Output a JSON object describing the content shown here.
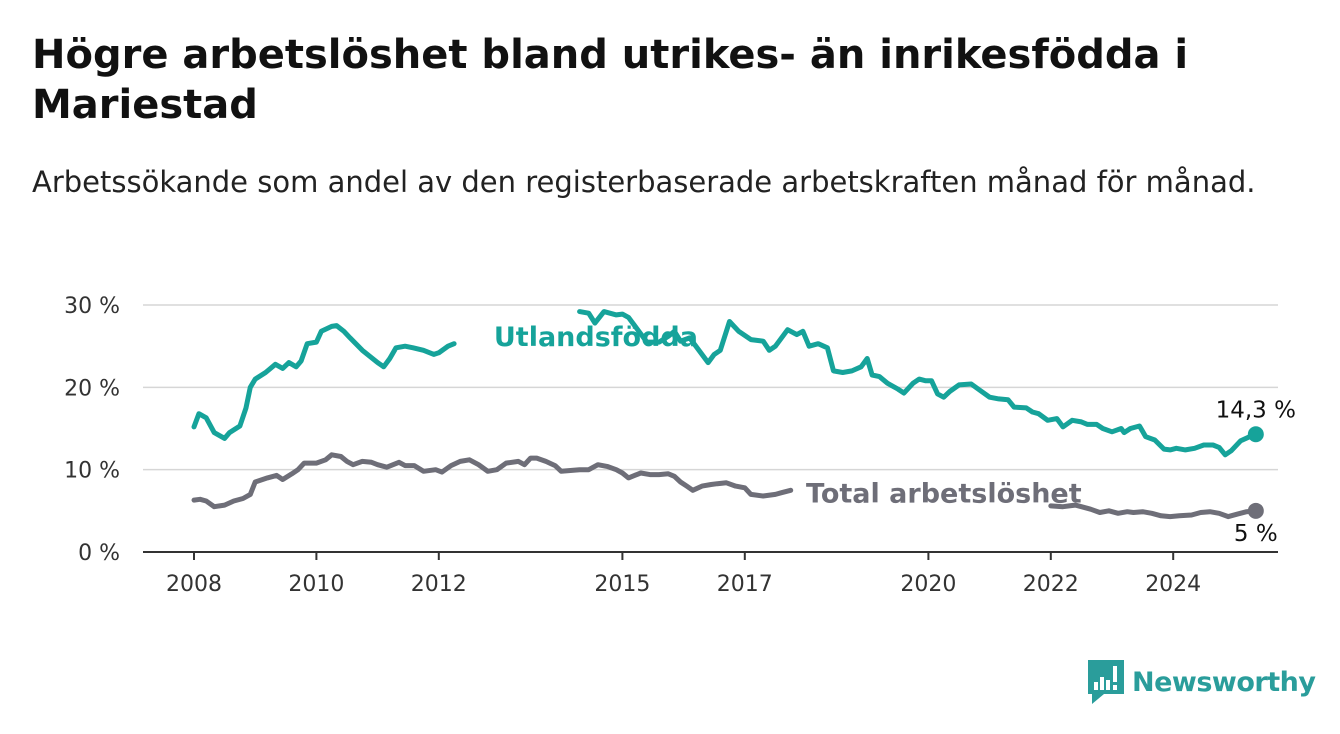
{
  "title": "Högre arbetslöshet bland utrikes- än inrikesfödda i Mariestad",
  "subtitle": "Arbetssökande som andel av den registerbaserade arbetskraften månad för månad.",
  "brand": {
    "name": "Newsworthy",
    "icon": "newsworthy-logo-icon",
    "color": "#2a9d9b"
  },
  "chart_data": {
    "type": "line",
    "x_unit": "year",
    "xlim": [
      2008,
      2025.3
    ],
    "ylim": [
      0,
      30
    ],
    "yticks": [
      0,
      10,
      20,
      30
    ],
    "ytick_labels": [
      "0 %",
      "10 %",
      "20 %",
      "30 %"
    ],
    "xticks": [
      2008,
      2010,
      2012,
      2015,
      2017,
      2020,
      2022,
      2024
    ],
    "xtick_labels": [
      "2008",
      "2010",
      "2012",
      "2015",
      "2017",
      "2020",
      "2022",
      "2024"
    ],
    "grid": true,
    "series": [
      {
        "name": "Utlandsfödda",
        "color": "#16a39a",
        "end_label": "14,3 %",
        "points": [
          [
            2008.0,
            15.2
          ],
          [
            2008.08,
            16.8
          ],
          [
            2008.2,
            16.3
          ],
          [
            2008.33,
            14.5
          ],
          [
            2008.5,
            13.8
          ],
          [
            2008.58,
            14.5
          ],
          [
            2008.75,
            15.3
          ],
          [
            2008.85,
            17.5
          ],
          [
            2008.92,
            20.0
          ],
          [
            2009.0,
            21.0
          ],
          [
            2009.17,
            21.8
          ],
          [
            2009.33,
            22.8
          ],
          [
            2009.45,
            22.3
          ],
          [
            2009.55,
            23.0
          ],
          [
            2009.67,
            22.5
          ],
          [
            2009.75,
            23.2
          ],
          [
            2009.85,
            25.3
          ],
          [
            2010.0,
            25.5
          ],
          [
            2010.08,
            26.8
          ],
          [
            2010.25,
            27.4
          ],
          [
            2010.33,
            27.5
          ],
          [
            2010.45,
            26.8
          ],
          [
            2010.55,
            26.0
          ],
          [
            2010.75,
            24.5
          ],
          [
            2011.0,
            23.0
          ],
          [
            2011.1,
            22.5
          ],
          [
            2011.2,
            23.5
          ],
          [
            2011.3,
            24.8
          ],
          [
            2011.45,
            25.0
          ],
          [
            2011.58,
            24.8
          ],
          [
            2011.75,
            24.5
          ],
          [
            2011.92,
            24.0
          ],
          [
            2012.0,
            24.2
          ],
          [
            2012.15,
            25.0
          ],
          [
            2012.25,
            25.3
          ],
          [
            2014.3,
            29.2
          ],
          [
            2014.45,
            29.0
          ],
          [
            2014.55,
            27.8
          ],
          [
            2014.7,
            29.2
          ],
          [
            2014.9,
            28.8
          ],
          [
            2015.0,
            28.9
          ],
          [
            2015.1,
            28.5
          ],
          [
            2015.25,
            27.0
          ],
          [
            2015.4,
            25.5
          ],
          [
            2015.6,
            25.5
          ],
          [
            2015.75,
            26.2
          ],
          [
            2015.85,
            26.8
          ],
          [
            2015.95,
            25.6
          ],
          [
            2016.1,
            26.0
          ],
          [
            2016.25,
            24.5
          ],
          [
            2016.4,
            23.0
          ],
          [
            2016.5,
            24.0
          ],
          [
            2016.6,
            24.5
          ],
          [
            2016.75,
            28.0
          ],
          [
            2016.9,
            26.8
          ],
          [
            2017.1,
            25.8
          ],
          [
            2017.3,
            25.6
          ],
          [
            2017.4,
            24.5
          ],
          [
            2017.5,
            25.0
          ],
          [
            2017.7,
            27.0
          ],
          [
            2017.85,
            26.4
          ],
          [
            2017.95,
            26.8
          ],
          [
            2018.05,
            25.0
          ],
          [
            2018.2,
            25.3
          ],
          [
            2018.35,
            24.8
          ],
          [
            2018.45,
            22.0
          ],
          [
            2018.6,
            21.8
          ],
          [
            2018.75,
            22.0
          ],
          [
            2018.9,
            22.5
          ],
          [
            2019.0,
            23.5
          ],
          [
            2019.08,
            21.5
          ],
          [
            2019.2,
            21.3
          ],
          [
            2019.33,
            20.5
          ],
          [
            2019.5,
            19.8
          ],
          [
            2019.6,
            19.3
          ],
          [
            2019.75,
            20.5
          ],
          [
            2019.85,
            21.0
          ],
          [
            2019.95,
            20.8
          ],
          [
            2020.05,
            20.8
          ],
          [
            2020.15,
            19.2
          ],
          [
            2020.25,
            18.8
          ],
          [
            2020.35,
            19.5
          ],
          [
            2020.5,
            20.3
          ],
          [
            2020.7,
            20.4
          ],
          [
            2020.85,
            19.6
          ],
          [
            2021.0,
            18.8
          ],
          [
            2021.15,
            18.6
          ],
          [
            2021.3,
            18.5
          ],
          [
            2021.4,
            17.6
          ],
          [
            2021.6,
            17.5
          ],
          [
            2021.7,
            17.0
          ],
          [
            2021.8,
            16.8
          ],
          [
            2021.95,
            16.0
          ],
          [
            2022.1,
            16.2
          ],
          [
            2022.2,
            15.2
          ],
          [
            2022.35,
            16.0
          ],
          [
            2022.5,
            15.8
          ],
          [
            2022.6,
            15.5
          ],
          [
            2022.75,
            15.5
          ],
          [
            2022.85,
            15.0
          ],
          [
            2023.0,
            14.6
          ],
          [
            2023.15,
            15.0
          ],
          [
            2023.2,
            14.5
          ],
          [
            2023.3,
            15.0
          ],
          [
            2023.45,
            15.3
          ],
          [
            2023.55,
            14.0
          ],
          [
            2023.7,
            13.6
          ],
          [
            2023.85,
            12.5
          ],
          [
            2023.95,
            12.4
          ],
          [
            2024.05,
            12.6
          ],
          [
            2024.2,
            12.4
          ],
          [
            2024.35,
            12.6
          ],
          [
            2024.5,
            13.0
          ],
          [
            2024.65,
            13.0
          ],
          [
            2024.75,
            12.7
          ],
          [
            2024.85,
            11.8
          ],
          [
            2024.95,
            12.3
          ],
          [
            2025.1,
            13.5
          ],
          [
            2025.25,
            14.0
          ],
          [
            2025.35,
            14.3
          ]
        ]
      },
      {
        "name": "Total arbetslöshet",
        "color": "#6e6e78",
        "end_label": "5 %",
        "points": [
          [
            2008.0,
            6.3
          ],
          [
            2008.1,
            6.4
          ],
          [
            2008.2,
            6.2
          ],
          [
            2008.33,
            5.5
          ],
          [
            2008.5,
            5.7
          ],
          [
            2008.65,
            6.2
          ],
          [
            2008.8,
            6.5
          ],
          [
            2008.92,
            7.0
          ],
          [
            2009.0,
            8.5
          ],
          [
            2009.2,
            9.0
          ],
          [
            2009.35,
            9.3
          ],
          [
            2009.45,
            8.8
          ],
          [
            2009.6,
            9.5
          ],
          [
            2009.7,
            10.0
          ],
          [
            2009.8,
            10.8
          ],
          [
            2010.0,
            10.8
          ],
          [
            2010.15,
            11.2
          ],
          [
            2010.25,
            11.8
          ],
          [
            2010.4,
            11.6
          ],
          [
            2010.5,
            11.0
          ],
          [
            2010.6,
            10.6
          ],
          [
            2010.75,
            11.0
          ],
          [
            2010.9,
            10.9
          ],
          [
            2011.0,
            10.6
          ],
          [
            2011.15,
            10.3
          ],
          [
            2011.35,
            10.9
          ],
          [
            2011.45,
            10.5
          ],
          [
            2011.6,
            10.5
          ],
          [
            2011.75,
            9.8
          ],
          [
            2011.95,
            10.0
          ],
          [
            2012.05,
            9.7
          ],
          [
            2012.2,
            10.5
          ],
          [
            2012.35,
            11.0
          ],
          [
            2012.5,
            11.2
          ],
          [
            2012.65,
            10.6
          ],
          [
            2012.8,
            9.8
          ],
          [
            2012.95,
            10.0
          ],
          [
            2013.1,
            10.8
          ],
          [
            2013.3,
            11.0
          ],
          [
            2013.4,
            10.6
          ],
          [
            2013.5,
            11.4
          ],
          [
            2013.6,
            11.4
          ],
          [
            2013.75,
            11.0
          ],
          [
            2013.9,
            10.5
          ],
          [
            2014.0,
            9.8
          ],
          [
            2014.15,
            9.9
          ],
          [
            2014.3,
            10.0
          ],
          [
            2014.45,
            10.0
          ],
          [
            2014.6,
            10.6
          ],
          [
            2014.75,
            10.4
          ],
          [
            2014.9,
            10.0
          ],
          [
            2015.0,
            9.6
          ],
          [
            2015.1,
            9.0
          ],
          [
            2015.2,
            9.3
          ],
          [
            2015.3,
            9.6
          ],
          [
            2015.45,
            9.4
          ],
          [
            2015.6,
            9.4
          ],
          [
            2015.75,
            9.5
          ],
          [
            2015.85,
            9.2
          ],
          [
            2015.95,
            8.5
          ],
          [
            2016.05,
            8.0
          ],
          [
            2016.15,
            7.5
          ],
          [
            2016.3,
            8.0
          ],
          [
            2016.45,
            8.2
          ],
          [
            2016.55,
            8.3
          ],
          [
            2016.7,
            8.4
          ],
          [
            2016.85,
            8.0
          ],
          [
            2017.0,
            7.8
          ],
          [
            2017.1,
            7.0
          ],
          [
            2017.3,
            6.8
          ],
          [
            2017.5,
            7.0
          ],
          [
            2017.6,
            7.2
          ],
          [
            2017.75,
            7.5
          ],
          [
            2022.0,
            5.6
          ],
          [
            2022.2,
            5.5
          ],
          [
            2022.3,
            5.6
          ],
          [
            2022.4,
            5.7
          ],
          [
            2022.5,
            5.5
          ],
          [
            2022.65,
            5.2
          ],
          [
            2022.8,
            4.8
          ],
          [
            2022.95,
            5.0
          ],
          [
            2023.1,
            4.7
          ],
          [
            2023.25,
            4.9
          ],
          [
            2023.35,
            4.8
          ],
          [
            2023.5,
            4.9
          ],
          [
            2023.65,
            4.7
          ],
          [
            2023.8,
            4.4
          ],
          [
            2023.95,
            4.3
          ],
          [
            2024.1,
            4.4
          ],
          [
            2024.3,
            4.5
          ],
          [
            2024.45,
            4.8
          ],
          [
            2024.6,
            4.9
          ],
          [
            2024.75,
            4.7
          ],
          [
            2024.9,
            4.3
          ],
          [
            2025.05,
            4.6
          ],
          [
            2025.2,
            4.9
          ],
          [
            2025.35,
            5.0
          ]
        ]
      }
    ],
    "annotations": [
      {
        "text": "Utlandsfödda",
        "series": "Utlandsfödda",
        "x": 2012.9,
        "y": 25.0
      },
      {
        "text": "Total arbetslöshet",
        "series": "Total arbetslöshet",
        "x": 2018.0,
        "y": 6.0
      }
    ]
  }
}
